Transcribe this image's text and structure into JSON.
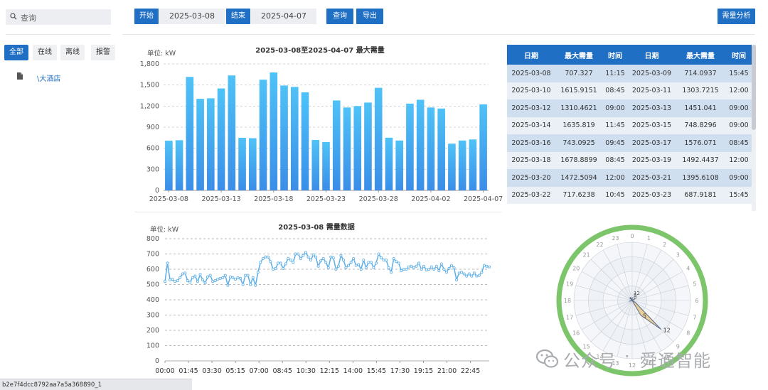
{
  "sidebar": {
    "search_placeholder": "查询",
    "tabs": [
      {
        "label": "全部",
        "active": true
      },
      {
        "label": "在线",
        "active": false
      },
      {
        "label": "离线",
        "active": false
      },
      {
        "label": "报警",
        "active": false
      }
    ],
    "tree_item": "\\大酒店"
  },
  "toolbar": {
    "start_label": "开始",
    "start_date": "2025-03-08",
    "end_label": "结束",
    "end_date": "2025-04-07",
    "query_label": "查询",
    "export_label": "导出",
    "analysis_label": "需量分析"
  },
  "colors": {
    "accent": "#1f6fc4",
    "bar_top": "#4fc2f7",
    "bar_bottom": "#3a8ee8",
    "line": "#5aaee8",
    "ring": "#7cc56a",
    "rose": "#e8c98a"
  },
  "table": {
    "headers": [
      "日期",
      "最大需量",
      "时间",
      "日期",
      "最大需量",
      "时间"
    ],
    "rows": [
      [
        "2025-03-08",
        "707.327",
        "11:15",
        "2025-03-09",
        "714.0937",
        "15:45"
      ],
      [
        "2025-03-10",
        "1615.9151",
        "08:45",
        "2025-03-11",
        "1303.7215",
        "12:00"
      ],
      [
        "2025-03-12",
        "1310.4621",
        "09:00",
        "2025-03-13",
        "1451.041",
        "09:00"
      ],
      [
        "2025-03-14",
        "1635.819",
        "11:45",
        "2025-03-15",
        "748.8296",
        "09:00"
      ],
      [
        "2025-03-16",
        "743.0925",
        "09:45",
        "2025-03-17",
        "1576.071",
        "08:45"
      ],
      [
        "2025-03-18",
        "1678.8899",
        "08:45",
        "2025-03-19",
        "1492.4437",
        "12:00"
      ],
      [
        "2025-03-20",
        "1472.5094",
        "12:00",
        "2025-03-21",
        "1395.6108",
        "09:00"
      ],
      [
        "2025-03-22",
        "717.6238",
        "10:45",
        "2025-03-23",
        "687.9181",
        "15:45"
      ]
    ]
  },
  "status_text": "b2e7f4dcc8792aa7a5a368890_1",
  "watermark": {
    "brand": "公众号",
    "sep": "·",
    "name": "舜通智能"
  },
  "chart_data": [
    {
      "type": "bar",
      "title": "2025-03-08至2025-04-07 最大需量",
      "unit_label": "单位: kW",
      "ylim": [
        0,
        1800
      ],
      "yticks": [
        0,
        300,
        600,
        900,
        1200,
        1500,
        1800
      ],
      "ytick_labels": [
        "0",
        "300",
        "600",
        "900",
        "1,200",
        "1,500",
        "1,800"
      ],
      "xtick_labels": [
        "2025-03-08",
        "2025-03-13",
        "2025-03-18",
        "2025-03-23",
        "2025-03-28",
        "2025-04-02",
        "2025-04-07"
      ],
      "categories": [
        "2025-03-08",
        "2025-03-09",
        "2025-03-10",
        "2025-03-11",
        "2025-03-12",
        "2025-03-13",
        "2025-03-14",
        "2025-03-15",
        "2025-03-16",
        "2025-03-17",
        "2025-03-18",
        "2025-03-19",
        "2025-03-20",
        "2025-03-21",
        "2025-03-22",
        "2025-03-23",
        "2025-03-24",
        "2025-03-25",
        "2025-03-26",
        "2025-03-27",
        "2025-03-28",
        "2025-03-29",
        "2025-03-30",
        "2025-03-31",
        "2025-04-01",
        "2025-04-02",
        "2025-04-03",
        "2025-04-04",
        "2025-04-05",
        "2025-04-06",
        "2025-04-07"
      ],
      "values": [
        707.3,
        714.1,
        1615.9,
        1303.7,
        1310.5,
        1451.0,
        1635.8,
        748.8,
        743.1,
        1576.1,
        1678.9,
        1492.4,
        1472.5,
        1395.6,
        717.6,
        687.9,
        1280,
        1180,
        1200,
        1250,
        1460,
        750,
        710,
        1235,
        1290,
        1180,
        1165,
        665,
        710,
        725,
        1225
      ]
    },
    {
      "type": "line",
      "title": "2025-03-08 需量数据",
      "unit_label": "单位: kW",
      "ylim": [
        0,
        800
      ],
      "yticks": [
        0,
        100,
        200,
        300,
        400,
        500,
        600,
        700,
        800
      ],
      "xtick_labels": [
        "00:00",
        "01:45",
        "03:30",
        "05:15",
        "07:00",
        "08:45",
        "10:30",
        "12:15",
        "14:00",
        "15:45",
        "17:30",
        "19:15",
        "21:00",
        "22:45"
      ],
      "values": [
        520,
        640,
        530,
        535,
        520,
        525,
        545,
        570,
        575,
        525,
        515,
        545,
        555,
        520,
        565,
        530,
        510,
        550,
        560,
        520,
        525,
        535,
        540,
        545,
        560,
        495,
        550,
        545,
        535,
        545,
        540,
        500,
        560,
        560,
        500,
        545,
        495,
        580,
        645,
        670,
        680,
        680,
        650,
        600,
        605,
        640,
        640,
        605,
        635,
        670,
        660,
        645,
        700,
        700,
        670,
        690,
        710,
        680,
        660,
        695,
        680,
        620,
        655,
        670,
        645,
        610,
        680,
        675,
        600,
        620,
        690,
        660,
        610,
        625,
        645,
        670,
        625,
        630,
        600,
        660,
        610,
        645,
        645,
        610,
        640,
        700,
        675,
        660,
        660,
        610,
        580,
        670,
        650,
        640,
        590,
        600,
        600,
        615,
        620,
        610,
        620,
        640,
        600,
        620,
        595,
        600,
        615,
        600,
        620,
        590,
        635,
        600,
        580,
        605,
        625,
        610,
        530,
        575,
        580,
        570,
        555,
        570,
        555,
        575,
        555,
        560,
        580,
        625,
        620,
        615
      ]
    },
    {
      "type": "polar",
      "angular_labels": [
        "0",
        "1",
        "2",
        "3",
        "4",
        "5",
        "6",
        "7",
        "8",
        "9",
        "10",
        "11",
        "12",
        "13",
        "14",
        "15",
        "16",
        "17",
        "18",
        "19",
        "20",
        "21",
        "22",
        "23"
      ],
      "radial_labels": [
        "0",
        "5",
        "12"
      ],
      "values": [
        1,
        0,
        0,
        0,
        1,
        0,
        0,
        0,
        1,
        12,
        5,
        0,
        0,
        0,
        0,
        0,
        0,
        1,
        0,
        0,
        0,
        1,
        1,
        0
      ]
    }
  ]
}
